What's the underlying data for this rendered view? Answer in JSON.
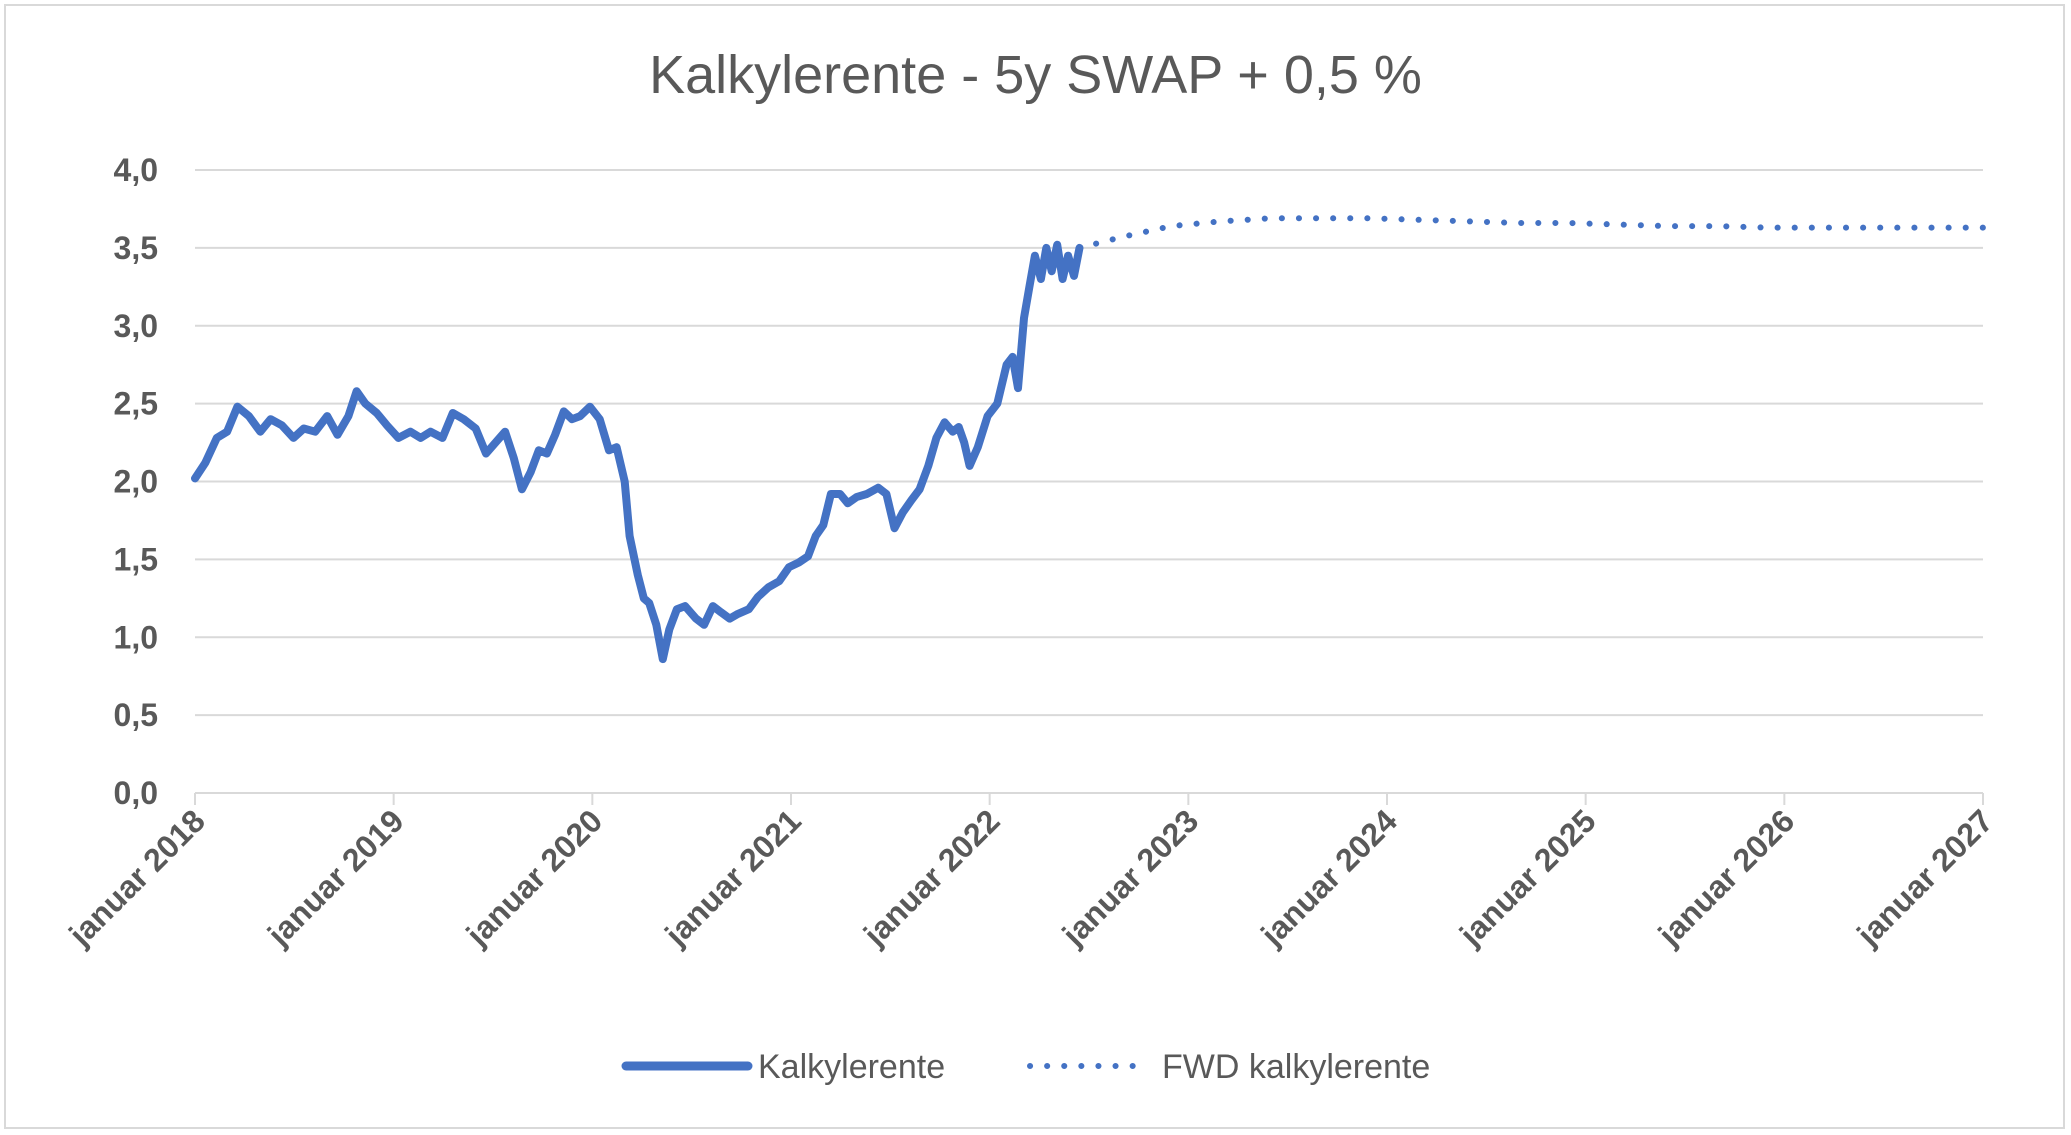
{
  "chart_data": {
    "type": "line",
    "title": "Kalkylerente - 5y SWAP + 0,5 %",
    "xlabel": "",
    "ylabel": "",
    "ylim": [
      0,
      4
    ],
    "y_ticks": [
      "0,0",
      "0,5",
      "1,0",
      "1,5",
      "2,0",
      "2,5",
      "3,0",
      "3,5",
      "4,0"
    ],
    "x_range": [
      "2018-01-01",
      "2027-01-01"
    ],
    "x_ticks": [
      "januar 2018",
      "januar 2019",
      "januar 2020",
      "januar 2021",
      "januar 2022",
      "januar 2023",
      "januar 2024",
      "januar 2025",
      "januar 2026",
      "januar 2027"
    ],
    "grid": "horizontal",
    "legend_position": "bottom",
    "colors": {
      "series": "#4472c4",
      "grid": "#d9d9d9",
      "text": "#595959"
    },
    "series": [
      {
        "name": "Kalkylerente",
        "style": "solid",
        "points": [
          [
            "2018-01-01",
            2.02
          ],
          [
            "2018-01-20",
            2.12
          ],
          [
            "2018-02-10",
            2.28
          ],
          [
            "2018-03-01",
            2.32
          ],
          [
            "2018-03-20",
            2.48
          ],
          [
            "2018-04-10",
            2.42
          ],
          [
            "2018-05-01",
            2.32
          ],
          [
            "2018-05-20",
            2.4
          ],
          [
            "2018-06-10",
            2.36
          ],
          [
            "2018-07-01",
            2.28
          ],
          [
            "2018-07-20",
            2.34
          ],
          [
            "2018-08-10",
            2.32
          ],
          [
            "2018-09-01",
            2.42
          ],
          [
            "2018-09-20",
            2.3
          ],
          [
            "2018-10-10",
            2.42
          ],
          [
            "2018-10-25",
            2.58
          ],
          [
            "2018-11-10",
            2.5
          ],
          [
            "2018-12-01",
            2.44
          ],
          [
            "2018-12-20",
            2.36
          ],
          [
            "2019-01-10",
            2.28
          ],
          [
            "2019-02-01",
            2.32
          ],
          [
            "2019-02-20",
            2.28
          ],
          [
            "2019-03-10",
            2.32
          ],
          [
            "2019-04-01",
            2.28
          ],
          [
            "2019-04-20",
            2.44
          ],
          [
            "2019-05-10",
            2.4
          ],
          [
            "2019-06-01",
            2.34
          ],
          [
            "2019-06-20",
            2.18
          ],
          [
            "2019-07-10",
            2.26
          ],
          [
            "2019-07-25",
            2.32
          ],
          [
            "2019-08-10",
            2.15
          ],
          [
            "2019-08-25",
            1.95
          ],
          [
            "2019-09-10",
            2.06
          ],
          [
            "2019-09-25",
            2.2
          ],
          [
            "2019-10-10",
            2.18
          ],
          [
            "2019-10-25",
            2.3
          ],
          [
            "2019-11-10",
            2.45
          ],
          [
            "2019-11-25",
            2.4
          ],
          [
            "2019-12-10",
            2.42
          ],
          [
            "2019-12-28",
            2.48
          ],
          [
            "2020-01-15",
            2.4
          ],
          [
            "2020-02-01",
            2.2
          ],
          [
            "2020-02-15",
            2.22
          ],
          [
            "2020-03-01",
            2.0
          ],
          [
            "2020-03-10",
            1.65
          ],
          [
            "2020-03-25",
            1.4
          ],
          [
            "2020-04-05",
            1.25
          ],
          [
            "2020-04-15",
            1.22
          ],
          [
            "2020-04-28",
            1.08
          ],
          [
            "2020-05-10",
            0.86
          ],
          [
            "2020-05-22",
            1.05
          ],
          [
            "2020-06-05",
            1.18
          ],
          [
            "2020-06-20",
            1.2
          ],
          [
            "2020-07-10",
            1.12
          ],
          [
            "2020-07-25",
            1.08
          ],
          [
            "2020-08-10",
            1.2
          ],
          [
            "2020-08-25",
            1.16
          ],
          [
            "2020-09-10",
            1.12
          ],
          [
            "2020-09-25",
            1.15
          ],
          [
            "2020-10-15",
            1.18
          ],
          [
            "2020-11-01",
            1.26
          ],
          [
            "2020-11-20",
            1.32
          ],
          [
            "2020-12-10",
            1.36
          ],
          [
            "2020-12-28",
            1.45
          ],
          [
            "2021-01-15",
            1.48
          ],
          [
            "2021-02-01",
            1.52
          ],
          [
            "2021-02-15",
            1.65
          ],
          [
            "2021-03-01",
            1.72
          ],
          [
            "2021-03-15",
            1.92
          ],
          [
            "2021-04-01",
            1.92
          ],
          [
            "2021-04-15",
            1.86
          ],
          [
            "2021-05-01",
            1.9
          ],
          [
            "2021-05-20",
            1.92
          ],
          [
            "2021-06-10",
            1.96
          ],
          [
            "2021-06-25",
            1.92
          ],
          [
            "2021-07-10",
            1.7
          ],
          [
            "2021-07-25",
            1.8
          ],
          [
            "2021-08-10",
            1.88
          ],
          [
            "2021-08-25",
            1.95
          ],
          [
            "2021-09-10",
            2.1
          ],
          [
            "2021-09-25",
            2.28
          ],
          [
            "2021-10-10",
            2.38
          ],
          [
            "2021-10-25",
            2.32
          ],
          [
            "2021-11-05",
            2.35
          ],
          [
            "2021-11-15",
            2.25
          ],
          [
            "2021-11-25",
            2.1
          ],
          [
            "2021-12-10",
            2.22
          ],
          [
            "2021-12-28",
            2.42
          ],
          [
            "2022-01-15",
            2.5
          ],
          [
            "2022-02-01",
            2.75
          ],
          [
            "2022-02-12",
            2.8
          ],
          [
            "2022-02-22",
            2.6
          ],
          [
            "2022-03-05",
            3.05
          ],
          [
            "2022-03-15",
            3.25
          ],
          [
            "2022-03-25",
            3.45
          ],
          [
            "2022-04-05",
            3.3
          ],
          [
            "2022-04-15",
            3.5
          ],
          [
            "2022-04-25",
            3.35
          ],
          [
            "2022-05-05",
            3.52
          ],
          [
            "2022-05-15",
            3.3
          ],
          [
            "2022-05-25",
            3.45
          ],
          [
            "2022-06-05",
            3.32
          ],
          [
            "2022-06-15",
            3.5
          ]
        ]
      },
      {
        "name": "FWD kalkylerente",
        "style": "dotted",
        "points": [
          [
            "2022-06-15",
            3.5
          ],
          [
            "2022-09-01",
            3.57
          ],
          [
            "2022-12-01",
            3.64
          ],
          [
            "2023-03-01",
            3.67
          ],
          [
            "2023-06-01",
            3.69
          ],
          [
            "2023-09-01",
            3.69
          ],
          [
            "2023-12-01",
            3.69
          ],
          [
            "2024-03-01",
            3.68
          ],
          [
            "2024-06-01",
            3.67
          ],
          [
            "2024-09-01",
            3.66
          ],
          [
            "2024-12-01",
            3.66
          ],
          [
            "2025-03-01",
            3.65
          ],
          [
            "2025-06-01",
            3.64
          ],
          [
            "2025-09-01",
            3.64
          ],
          [
            "2025-12-01",
            3.63
          ],
          [
            "2026-03-01",
            3.63
          ],
          [
            "2026-06-01",
            3.63
          ],
          [
            "2026-09-01",
            3.63
          ],
          [
            "2027-01-01",
            3.63
          ]
        ]
      }
    ]
  }
}
